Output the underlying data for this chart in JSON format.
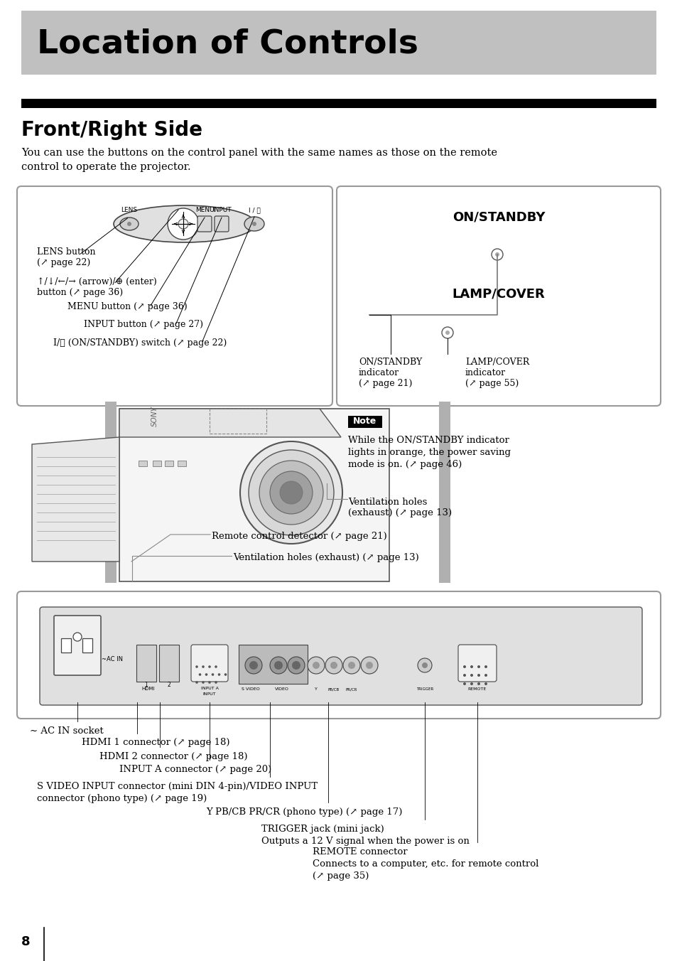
{
  "title": "Location of Controls",
  "subtitle": "Front/Right Side",
  "bg_color": "#ffffff",
  "title_bg_color": "#c0c0c0",
  "body_text": "You can use the buttons on the control panel with the same names as those on the remote\ncontrol to operate the projector.",
  "note_text": "While the ON/STANDBY indicator\nlights in orange, the power saving\nmode is on. (↗ page 46)",
  "page_number": "8",
  "labels": {
    "lens_button": "LENS button\n(↗ page 22)",
    "arrow_enter": "↑/↓/←/→ (arrow)/⊕ (enter)\nbutton (↗ page 36)",
    "menu_button": "MENU button (↗ page 36)",
    "input_button": "INPUT button (↗ page 27)",
    "onstandby_switch": "I/⏻ (ON/STANDBY) switch (↗ page 22)",
    "on_standby_label": "ON/STANDBY",
    "lamp_cover_label": "LAMP/COVER",
    "onstandby_indicator": "ON/STANDBY\nindicator\n(↗ page 21)",
    "lamp_cover_indicator": "LAMP/COVER\nindicator\n(↗ page 55)",
    "ventilation1": "Ventilation holes\n(exhaust) (↗ page 13)",
    "ventilation2": "Ventilation holes (exhaust) (↗ page 13)",
    "remote_detector": "Remote control detector (↗ page 21)",
    "ac_socket": "∼ AC IN socket",
    "hdmi1": "HDMI 1 connector (↗ page 18)",
    "hdmi2": "HDMI 2 connector (↗ page 18)",
    "input_a": "INPUT A connector (↗ page 20)",
    "svideo": "S VIDEO INPUT connector (mini DIN 4-pin)/VIDEO INPUT\nconnector (phono type) (↗ page 19)",
    "y_pb_pr": "Y PB/CB PR/CR (phono type) (↗ page 17)",
    "trigger": "TRIGGER jack (mini jack)\nOutputs a 12 V signal when the power is on",
    "remote_conn": "REMOTE connector\nConnects to a computer, etc. for remote control\n(↗ page 35)"
  }
}
